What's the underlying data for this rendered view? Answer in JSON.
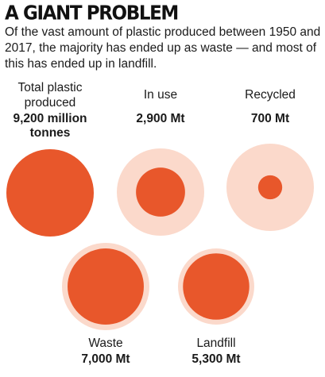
{
  "header": {
    "title": "A GIANT PROBLEM",
    "subtitle": "Of the vast amount of plastic produced between 1950 and 2017, the majority has ended up as waste — and most of this has ended up in landfill."
  },
  "chart_data": {
    "type": "proportional-area-circles",
    "title": "A GIANT PROBLEM",
    "unit": "Mt",
    "total": {
      "label_lines": [
        "Total plastic",
        "produced"
      ],
      "value_lines": [
        "9,200 million",
        "tonnes"
      ],
      "value": 9200
    },
    "items": [
      {
        "label": "In use",
        "value_label": "2,900 Mt",
        "value": 2900,
        "reference": "total"
      },
      {
        "label": "Recycled",
        "value_label": "700 Mt",
        "value": 700,
        "reference": "total"
      },
      {
        "label": "Waste",
        "value_label": "7,000 Mt",
        "value": 7000,
        "reference": "total"
      },
      {
        "label": "Landfill",
        "value_label": "5,300 Mt",
        "value": 5300,
        "reference": "waste"
      }
    ]
  },
  "colors": {
    "inner": "#e8572b",
    "outer": "#fbd9cb",
    "text": "#1a1a1a"
  }
}
